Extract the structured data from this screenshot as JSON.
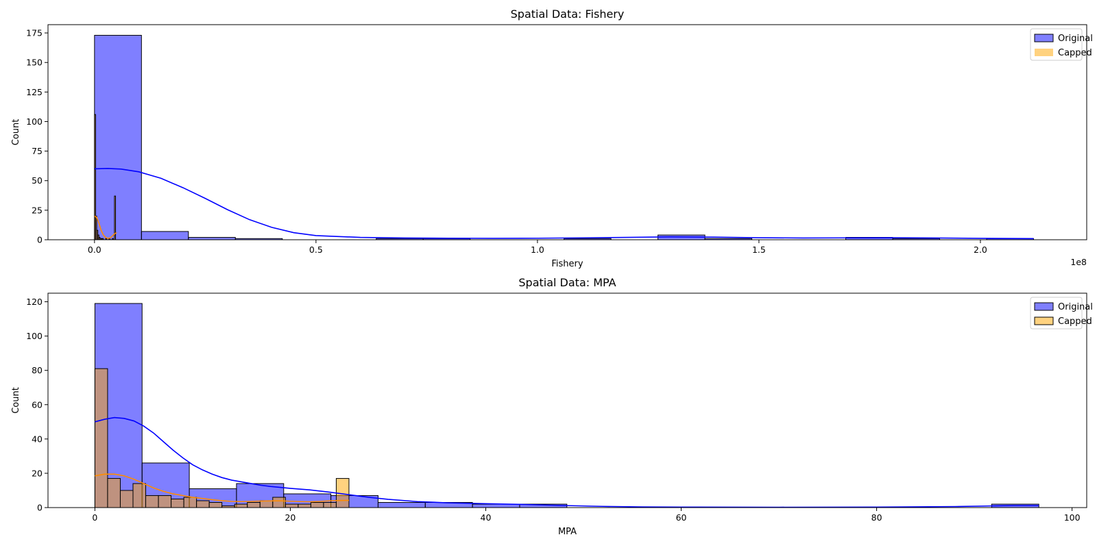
{
  "chart_data": [
    {
      "type": "histogram",
      "title": "Spatial Data: Fishery",
      "xlabel": "Fishery",
      "ylabel": "Count",
      "x_offset_text": "1e8",
      "xlim": [
        -0.105,
        2.24
      ],
      "ylim": [
        0,
        182
      ],
      "xticks": [
        0.0,
        0.5,
        1.0,
        1.5,
        2.0
      ],
      "xtick_labels": [
        "0.0",
        "0.5",
        "1.0",
        "1.5",
        "2.0"
      ],
      "yticks": [
        0,
        25,
        50,
        75,
        100,
        125,
        150,
        175
      ],
      "ytick_labels": [
        "0",
        "25",
        "50",
        "75",
        "100",
        "125",
        "150",
        "175"
      ],
      "legend_position": "top-right",
      "series": [
        {
          "name": "Original",
          "color": "#0000ff",
          "bins": [
            {
              "x0": 0.0,
              "x1": 0.106,
              "count": 173
            },
            {
              "x0": 0.106,
              "x1": 0.212,
              "count": 7
            },
            {
              "x0": 0.212,
              "x1": 0.318,
              "count": 2
            },
            {
              "x0": 0.318,
              "x1": 0.424,
              "count": 1
            },
            {
              "x0": 0.424,
              "x1": 0.53,
              "count": 0
            },
            {
              "x0": 0.53,
              "x1": 0.636,
              "count": 0
            },
            {
              "x0": 0.636,
              "x1": 0.742,
              "count": 1
            },
            {
              "x0": 0.742,
              "x1": 0.848,
              "count": 1
            },
            {
              "x0": 0.848,
              "x1": 0.954,
              "count": 0
            },
            {
              "x0": 0.954,
              "x1": 1.06,
              "count": 0
            },
            {
              "x0": 1.06,
              "x1": 1.166,
              "count": 1
            },
            {
              "x0": 1.166,
              "x1": 1.272,
              "count": 0
            },
            {
              "x0": 1.272,
              "x1": 1.378,
              "count": 4
            },
            {
              "x0": 1.378,
              "x1": 1.484,
              "count": 1
            },
            {
              "x0": 1.484,
              "x1": 1.59,
              "count": 0
            },
            {
              "x0": 1.59,
              "x1": 1.696,
              "count": 0
            },
            {
              "x0": 1.696,
              "x1": 1.802,
              "count": 2
            },
            {
              "x0": 1.802,
              "x1": 1.908,
              "count": 1
            },
            {
              "x0": 1.908,
              "x1": 2.014,
              "count": 0
            },
            {
              "x0": 2.014,
              "x1": 2.12,
              "count": 1
            }
          ],
          "kde": [
            [
              0.0,
              60
            ],
            [
              0.03,
              60.3
            ],
            [
              0.06,
              59.8
            ],
            [
              0.1,
              57.5
            ],
            [
              0.15,
              52
            ],
            [
              0.2,
              44
            ],
            [
              0.25,
              35
            ],
            [
              0.3,
              25.5
            ],
            [
              0.35,
              17
            ],
            [
              0.4,
              10.5
            ],
            [
              0.45,
              6
            ],
            [
              0.5,
              3.5
            ],
            [
              0.6,
              2
            ],
            [
              0.7,
              1.5
            ],
            [
              0.8,
              1.3
            ],
            [
              0.9,
              1.2
            ],
            [
              1.0,
              1.3
            ],
            [
              1.1,
              1.6
            ],
            [
              1.2,
              2
            ],
            [
              1.3,
              2.4
            ],
            [
              1.4,
              2.2
            ],
            [
              1.5,
              1.7
            ],
            [
              1.6,
              1.5
            ],
            [
              1.7,
              1.6
            ],
            [
              1.8,
              1.7
            ],
            [
              1.9,
              1.5
            ],
            [
              2.0,
              1.2
            ],
            [
              2.12,
              1.0
            ]
          ]
        },
        {
          "name": "Capped",
          "color": "#ffa500",
          "bins": [
            {
              "x0": 0.0,
              "x1": 0.0025,
              "count": 106
            },
            {
              "x0": 0.0025,
              "x1": 0.005,
              "count": 20
            },
            {
              "x0": 0.005,
              "x1": 0.0075,
              "count": 8
            },
            {
              "x0": 0.0075,
              "x1": 0.01,
              "count": 4
            },
            {
              "x0": 0.01,
              "x1": 0.0125,
              "count": 2
            },
            {
              "x0": 0.0125,
              "x1": 0.015,
              "count": 1
            },
            {
              "x0": 0.015,
              "x1": 0.0175,
              "count": 1
            },
            {
              "x0": 0.0175,
              "x1": 0.02,
              "count": 1
            },
            {
              "x0": 0.02,
              "x1": 0.0225,
              "count": 0
            },
            {
              "x0": 0.0225,
              "x1": 0.025,
              "count": 0
            },
            {
              "x0": 0.025,
              "x1": 0.0275,
              "count": 1
            },
            {
              "x0": 0.0275,
              "x1": 0.03,
              "count": 0
            },
            {
              "x0": 0.03,
              "x1": 0.0325,
              "count": 0
            },
            {
              "x0": 0.0325,
              "x1": 0.035,
              "count": 1
            },
            {
              "x0": 0.035,
              "x1": 0.0375,
              "count": 0
            },
            {
              "x0": 0.0375,
              "x1": 0.04,
              "count": 0
            },
            {
              "x0": 0.04,
              "x1": 0.0425,
              "count": 1
            },
            {
              "x0": 0.0425,
              "x1": 0.045,
              "count": 0
            },
            {
              "x0": 0.045,
              "x1": 0.0475,
              "count": 37
            },
            {
              "x0": 0.0475,
              "x1": 0.05,
              "count": 0
            }
          ],
          "kde": [
            [
              0.0,
              20
            ],
            [
              0.005,
              19
            ],
            [
              0.01,
              14
            ],
            [
              0.015,
              8
            ],
            [
              0.02,
              4
            ],
            [
              0.025,
              2
            ],
            [
              0.03,
              1.2
            ],
            [
              0.035,
              1.5
            ],
            [
              0.04,
              3
            ],
            [
              0.045,
              5
            ],
            [
              0.05,
              6
            ]
          ]
        }
      ]
    },
    {
      "type": "histogram",
      "title": "Spatial Data: MPA",
      "xlabel": "MPA",
      "ylabel": "Count",
      "xlim": [
        -4.8,
        101.5
      ],
      "ylim": [
        0,
        125
      ],
      "xticks": [
        0,
        20,
        40,
        60,
        80,
        100
      ],
      "xtick_labels": [
        "0",
        "20",
        "40",
        "60",
        "80",
        "100"
      ],
      "yticks": [
        0,
        20,
        40,
        60,
        80,
        100,
        120
      ],
      "ytick_labels": [
        "0",
        "20",
        "40",
        "60",
        "80",
        "100",
        "120"
      ],
      "legend_position": "top-right",
      "series": [
        {
          "name": "Original",
          "color": "#0000ff",
          "bins": [
            {
              "x0": 0.0,
              "x1": 4.83,
              "count": 119
            },
            {
              "x0": 4.83,
              "x1": 9.66,
              "count": 26
            },
            {
              "x0": 9.66,
              "x1": 14.49,
              "count": 11
            },
            {
              "x0": 14.49,
              "x1": 19.32,
              "count": 14
            },
            {
              "x0": 19.32,
              "x1": 24.15,
              "count": 8
            },
            {
              "x0": 24.15,
              "x1": 28.98,
              "count": 7
            },
            {
              "x0": 28.98,
              "x1": 33.81,
              "count": 3
            },
            {
              "x0": 33.81,
              "x1": 38.64,
              "count": 3
            },
            {
              "x0": 38.64,
              "x1": 43.47,
              "count": 2
            },
            {
              "x0": 43.47,
              "x1": 48.3,
              "count": 2
            },
            {
              "x0": 48.3,
              "x1": 53.13,
              "count": 0
            },
            {
              "x0": 53.13,
              "x1": 57.96,
              "count": 0
            },
            {
              "x0": 57.96,
              "x1": 62.79,
              "count": 0
            },
            {
              "x0": 62.79,
              "x1": 67.62,
              "count": 0
            },
            {
              "x0": 67.62,
              "x1": 72.45,
              "count": 0
            },
            {
              "x0": 72.45,
              "x1": 77.28,
              "count": 0
            },
            {
              "x0": 77.28,
              "x1": 82.11,
              "count": 0
            },
            {
              "x0": 82.11,
              "x1": 86.94,
              "count": 0
            },
            {
              "x0": 86.94,
              "x1": 91.77,
              "count": 0
            },
            {
              "x0": 91.77,
              "x1": 96.6,
              "count": 2
            }
          ],
          "kde": [
            [
              0,
              50
            ],
            [
              1,
              51.5
            ],
            [
              2,
              52.5
            ],
            [
              3,
              52
            ],
            [
              4,
              50.5
            ],
            [
              5,
              47.5
            ],
            [
              6,
              43.5
            ],
            [
              7,
              38.5
            ],
            [
              8,
              33.5
            ],
            [
              9,
              29
            ],
            [
              10,
              25
            ],
            [
              11,
              22
            ],
            [
              12,
              19.5
            ],
            [
              13,
              17.5
            ],
            [
              14,
              16
            ],
            [
              15,
              15
            ],
            [
              16,
              14
            ],
            [
              17,
              13
            ],
            [
              18,
              12.3
            ],
            [
              20,
              11.2
            ],
            [
              22,
              10.3
            ],
            [
              24,
              9
            ],
            [
              26,
              7.5
            ],
            [
              28,
              6
            ],
            [
              30,
              4.8
            ],
            [
              33,
              3.5
            ],
            [
              36,
              2.8
            ],
            [
              40,
              2.3
            ],
            [
              44,
              1.8
            ],
            [
              48,
              1.2
            ],
            [
              52,
              0.7
            ],
            [
              56,
              0.4
            ],
            [
              60,
              0.3
            ],
            [
              70,
              0.2
            ],
            [
              80,
              0.3
            ],
            [
              88,
              0.6
            ],
            [
              92,
              1.0
            ],
            [
              94,
              1.2
            ],
            [
              96.6,
              1.2
            ]
          ]
        },
        {
          "name": "Capped",
          "color": "#ffa500",
          "bins": [
            {
              "x0": 0.0,
              "x1": 1.3,
              "count": 81
            },
            {
              "x0": 1.3,
              "x1": 2.6,
              "count": 17
            },
            {
              "x0": 2.6,
              "x1": 3.9,
              "count": 10
            },
            {
              "x0": 3.9,
              "x1": 5.2,
              "count": 14
            },
            {
              "x0": 5.2,
              "x1": 6.5,
              "count": 7
            },
            {
              "x0": 6.5,
              "x1": 7.8,
              "count": 7
            },
            {
              "x0": 7.8,
              "x1": 9.1,
              "count": 5
            },
            {
              "x0": 9.1,
              "x1": 10.4,
              "count": 6
            },
            {
              "x0": 10.4,
              "x1": 11.7,
              "count": 4
            },
            {
              "x0": 11.7,
              "x1": 13.0,
              "count": 3
            },
            {
              "x0": 13.0,
              "x1": 14.3,
              "count": 1
            },
            {
              "x0": 14.3,
              "x1": 15.6,
              "count": 2
            },
            {
              "x0": 15.6,
              "x1": 16.9,
              "count": 3
            },
            {
              "x0": 16.9,
              "x1": 18.2,
              "count": 4
            },
            {
              "x0": 18.2,
              "x1": 19.5,
              "count": 6
            },
            {
              "x0": 19.5,
              "x1": 20.8,
              "count": 2
            },
            {
              "x0": 20.8,
              "x1": 22.1,
              "count": 2
            },
            {
              "x0": 22.1,
              "x1": 23.4,
              "count": 3
            },
            {
              "x0": 23.4,
              "x1": 24.7,
              "count": 3
            },
            {
              "x0": 24.7,
              "x1": 26.0,
              "count": 17
            }
          ],
          "kde": [
            [
              0,
              18.5
            ],
            [
              1,
              19.5
            ],
            [
              2,
              19.5
            ],
            [
              3,
              18.5
            ],
            [
              4,
              16.5
            ],
            [
              5,
              14
            ],
            [
              6,
              11.5
            ],
            [
              7,
              9.5
            ],
            [
              8,
              8
            ],
            [
              9,
              7
            ],
            [
              10,
              6
            ],
            [
              11,
              5.3
            ],
            [
              12,
              4.6
            ],
            [
              13,
              4
            ],
            [
              14,
              3.6
            ],
            [
              15,
              3.5
            ],
            [
              16,
              3.6
            ],
            [
              17,
              3.8
            ],
            [
              18,
              3.9
            ],
            [
              19,
              3.9
            ],
            [
              20,
              3.7
            ],
            [
              21,
              3.5
            ],
            [
              22,
              3.4
            ],
            [
              23,
              3.6
            ],
            [
              24,
              3.9
            ],
            [
              25,
              4.1
            ],
            [
              26,
              4.2
            ]
          ]
        }
      ]
    }
  ]
}
